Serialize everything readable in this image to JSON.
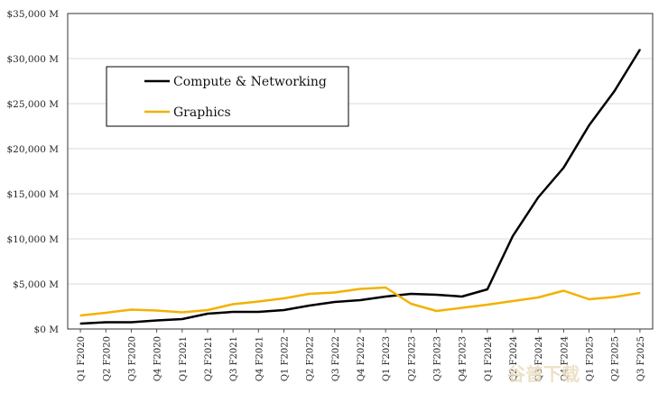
{
  "chart_data": {
    "type": "line",
    "categories": [
      "Q1 F2020",
      "Q2 F2020",
      "Q3 F2020",
      "Q4 F2020",
      "Q1 F2021",
      "Q2 F2021",
      "Q3 F2021",
      "Q4 F2021",
      "Q1 F2022",
      "Q2 F2022",
      "Q3 F2022",
      "Q4 F2022",
      "Q1 F2023",
      "Q2 F2023",
      "Q3 F2023",
      "Q4 F2023",
      "Q1 F2024",
      "Q2 F2024",
      "Q3 F2024",
      "Q4 F2024",
      "Q1 F2025",
      "Q2 F2025",
      "Q3 F2025"
    ],
    "series": [
      {
        "name": "Compute & Networking",
        "color": "#000000",
        "values": [
          600,
          750,
          750,
          950,
          1100,
          1700,
          1900,
          1900,
          2100,
          2600,
          3000,
          3200,
          3600,
          3900,
          3800,
          3600,
          4400,
          10300,
          14600,
          17900,
          22600,
          26400,
          31000
        ]
      },
      {
        "name": "Graphics",
        "color": "#f2b200",
        "values": [
          1500,
          1800,
          2150,
          2050,
          1850,
          2100,
          2750,
          3050,
          3400,
          3900,
          4050,
          4450,
          4600,
          2800,
          2000,
          2350,
          2700,
          3100,
          3500,
          4250,
          3300,
          3550,
          4000
        ]
      }
    ],
    "y_ticks": [
      "$0 M",
      "$5,000 M",
      "$10,000 M",
      "$15,000 M",
      "$20,000 M",
      "$25,000 M",
      "$30,000 M",
      "$35,000 M"
    ],
    "ylim": [
      0,
      35000
    ],
    "grid": true,
    "legend_position": "upper-left"
  },
  "watermark": "谷普下载"
}
